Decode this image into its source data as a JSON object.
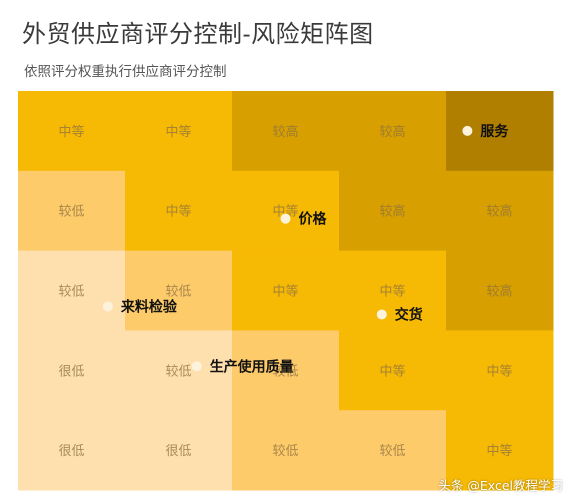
{
  "title": "外贸供应商评分控制-风险矩阵图",
  "subtitle": "依照评分权重执行供应商评分控制",
  "watermark": "头条 @Excel教程学习",
  "colors": {
    "很低": "#FEDFAE",
    "较低": "#FDCB6A",
    "中等": "#F6B904",
    "较高": "#D7A000",
    "高": "#B07F00",
    "cell_text": "#8c7040",
    "point_fill": "#fdf3dc",
    "point_label": "#111111"
  },
  "chart_data": {
    "type": "scatter",
    "title": "外贸供应商评分控制-风险矩阵图",
    "subtitle": "依照评分权重执行供应商评分控制",
    "xlim": [
      0,
      5
    ],
    "ylim": [
      0,
      5
    ],
    "grid": {
      "rows": 5,
      "cols": 5,
      "cells": [
        [
          {
            "label": "中等",
            "level": "中等"
          },
          {
            "label": "中等",
            "level": "中等"
          },
          {
            "label": "较高",
            "level": "较高"
          },
          {
            "label": "较高",
            "level": "较高"
          },
          {
            "label": "",
            "level": "高"
          }
        ],
        [
          {
            "label": "较低",
            "level": "较低"
          },
          {
            "label": "中等",
            "level": "中等"
          },
          {
            "label": "中等",
            "level": "中等"
          },
          {
            "label": "较高",
            "level": "较高"
          },
          {
            "label": "较高",
            "level": "较高"
          }
        ],
        [
          {
            "label": "较低",
            "level": "很低"
          },
          {
            "label": "较低",
            "level": "较低"
          },
          {
            "label": "中等",
            "level": "中等"
          },
          {
            "label": "中等",
            "level": "中等"
          },
          {
            "label": "较高",
            "level": "较高"
          }
        ],
        [
          {
            "label": "很低",
            "level": "很低"
          },
          {
            "label": "较低",
            "level": "很低"
          },
          {
            "label": "较低",
            "level": "较低"
          },
          {
            "label": "中等",
            "level": "中等"
          },
          {
            "label": "中等",
            "level": "中等"
          }
        ],
        [
          {
            "label": "很低",
            "level": "很低"
          },
          {
            "label": "很低",
            "level": "很低"
          },
          {
            "label": "较低",
            "level": "较低"
          },
          {
            "label": "较低",
            "level": "较低"
          },
          {
            "label": "中等",
            "level": "中等"
          }
        ]
      ]
    },
    "points": [
      {
        "name": "服务",
        "x": 4.2,
        "y": 4.5
      },
      {
        "name": "价格",
        "x": 2.5,
        "y": 3.4
      },
      {
        "name": "来料检验",
        "x": 0.84,
        "y": 2.3
      },
      {
        "name": "交货",
        "x": 3.4,
        "y": 2.2
      },
      {
        "name": "生产使用质量",
        "x": 1.67,
        "y": 1.55
      }
    ]
  }
}
